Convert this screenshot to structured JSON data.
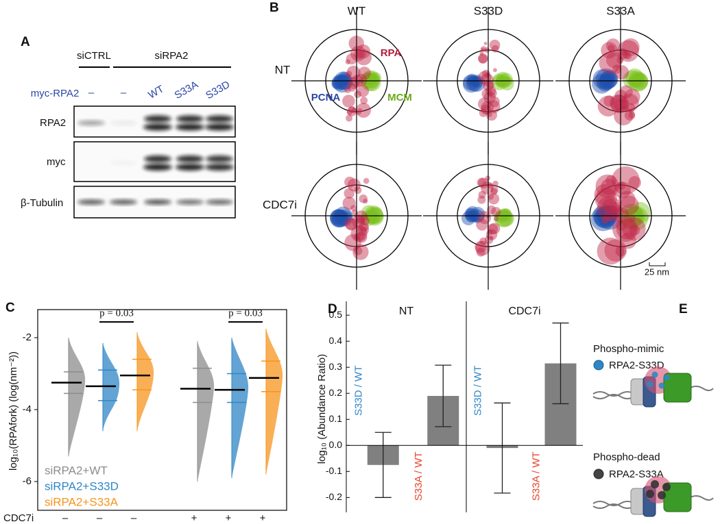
{
  "panel_a": {
    "letter": "A",
    "groups": [
      "siCTRL",
      "siRPA2"
    ],
    "row_label": "myc-RPA2",
    "lanes": [
      "–",
      "–",
      "WT",
      "S33A",
      "S33D"
    ],
    "blots": [
      "RPA2",
      "myc",
      "β-Tubulin"
    ]
  },
  "panel_b": {
    "letter": "B",
    "columns": [
      "WT",
      "S33D",
      "S33A"
    ],
    "rows": [
      "NT",
      "CDC7i"
    ],
    "labels": [
      "RPA",
      "PCNA",
      "MCM"
    ],
    "scale": "25 nm"
  },
  "chart_data": [
    {
      "type": "violin",
      "letter": "C",
      "y_label": "log₁₀(RPAfork) (log(nm⁻²))",
      "ylim": [
        -6.8,
        -1.22
      ],
      "yticks": [
        -2,
        -4,
        -6
      ],
      "series": [
        {
          "name": "siRPA2+WT",
          "color": "#8c8c8c",
          "mean": [
            -3.25,
            -3.42
          ],
          "q1": [
            -3.55,
            -3.8
          ],
          "q3": [
            -2.95,
            -2.85
          ],
          "min": [
            -5.3,
            -6.0
          ],
          "max": [
            -2.0,
            -2.1
          ]
        },
        {
          "name": "siRPA2+S33D",
          "color": "#2f86c6",
          "mean": [
            -3.35,
            -3.45
          ],
          "q1": [
            -3.75,
            -3.8
          ],
          "q3": [
            -2.9,
            -3.0
          ],
          "min": [
            -4.6,
            -5.9
          ],
          "max": [
            -2.15,
            -2.0
          ]
        },
        {
          "name": "siRPA2+S33A",
          "color": "#f7941d",
          "mean": [
            -3.05,
            -3.12
          ],
          "q1": [
            -3.45,
            -3.5
          ],
          "q3": [
            -2.6,
            -2.65
          ],
          "min": [
            -4.6,
            -5.8
          ],
          "max": [
            -1.85,
            -1.75
          ]
        }
      ],
      "annotations": [
        "p = 0.03",
        "p = 0.03"
      ],
      "row_label": "CDC7i",
      "conditions": [
        "–",
        "+"
      ]
    },
    {
      "type": "bar",
      "letter": "D",
      "y_label": "log₁₀ (Abundance Ratio)",
      "ylim": [
        -0.257,
        0.553
      ],
      "yticks": [
        0.5,
        0.4,
        0.3,
        0.2,
        0.1,
        {
          "value": 0,
          "label": "0.0"
        },
        -0.1,
        -0.2
      ],
      "color": "#808080",
      "category_colors": [
        "#2f86c6",
        "#e8452c"
      ],
      "panels": [
        {
          "title": "NT",
          "categories": [
            "S33D / WT",
            "S33A / WT"
          ],
          "values": [
            -0.075,
            0.19
          ],
          "errors": [
            0.125,
            0.118
          ]
        },
        {
          "title": "CDC7i",
          "categories": [
            "S33D / WT",
            "S33A / WT"
          ],
          "values": [
            -0.01,
            0.315
          ],
          "errors": [
            0.173,
            0.155
          ]
        }
      ]
    }
  ],
  "panel_e": {
    "letter": "E",
    "mimic_title": "Phospho-mimic",
    "mimic_label": "RPA2-S33D",
    "dead_title": "Phospho-dead",
    "dead_label": "RPA2-S33A"
  }
}
